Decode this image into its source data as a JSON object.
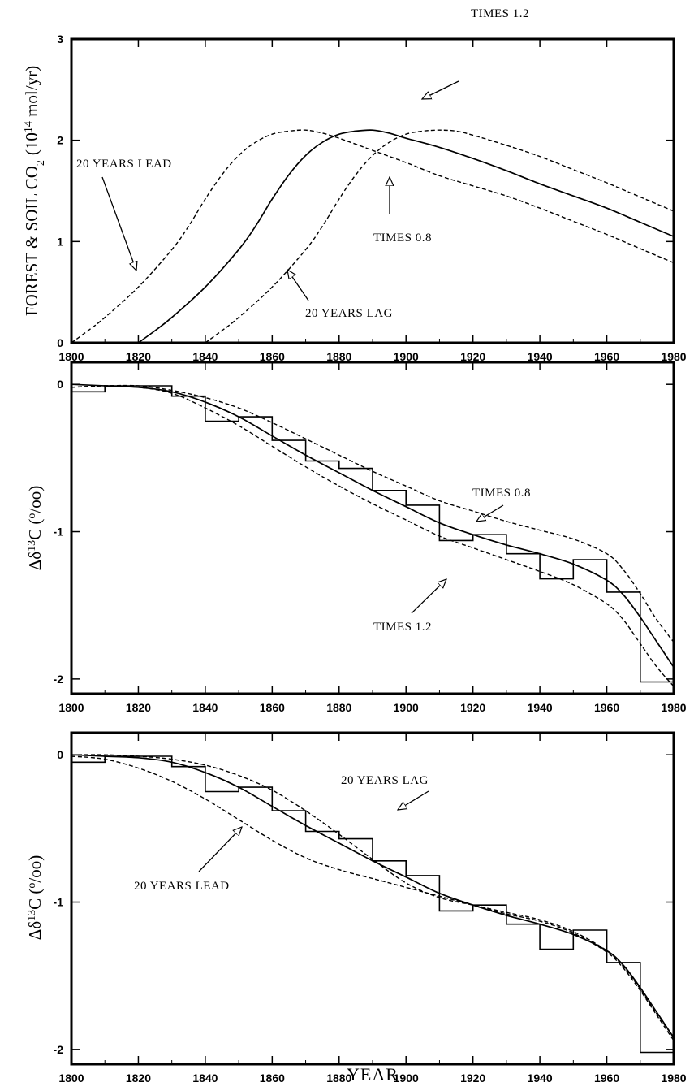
{
  "chart_data": [
    {
      "type": "line",
      "ylabel_main": "FOREST & SOIL CO",
      "ylabel_sub": "2",
      "ylabel_unit_pre": "(10",
      "ylabel_unit_sup": "14",
      "ylabel_unit_post": " mol/yr)",
      "xlim": [
        1800,
        1980
      ],
      "ylim": [
        0,
        3
      ],
      "xticks": [
        "1800",
        "1820",
        "1840",
        "1860",
        "1880",
        "1900",
        "1920",
        "1940",
        "1960",
        "1980"
      ],
      "yticks": [
        "0",
        "1",
        "2",
        "3"
      ],
      "series": [
        {
          "style": "solid",
          "x": [
            1820,
            1825,
            1830,
            1840,
            1850,
            1855,
            1860,
            1865,
            1870,
            1875,
            1880,
            1885,
            1890,
            1895,
            1900,
            1910,
            1920,
            1930,
            1940,
            1950,
            1960,
            1970,
            1980
          ],
          "y": [
            0,
            0.12,
            0.25,
            0.55,
            0.92,
            1.15,
            1.42,
            1.66,
            1.85,
            1.98,
            2.06,
            2.09,
            2.1,
            2.07,
            2.02,
            1.93,
            1.82,
            1.7,
            1.57,
            1.45,
            1.33,
            1.19,
            1.05
          ]
        },
        {
          "style": "dashed",
          "x": [
            1800,
            1805,
            1810,
            1820,
            1830,
            1835,
            1840,
            1845,
            1850,
            1855,
            1860,
            1865,
            1870,
            1875,
            1880,
            1890,
            1900,
            1910,
            1920,
            1930,
            1940,
            1950,
            1960,
            1970,
            1980
          ],
          "y": [
            0,
            0.12,
            0.25,
            0.55,
            0.92,
            1.15,
            1.42,
            1.66,
            1.85,
            1.98,
            2.06,
            2.09,
            2.1,
            2.07,
            2.02,
            1.9,
            1.78,
            1.65,
            1.55,
            1.45,
            1.33,
            1.2,
            1.07,
            0.93,
            0.79
          ]
        },
        {
          "style": "dashed",
          "x": [
            1840,
            1845,
            1850,
            1860,
            1870,
            1875,
            1880,
            1885,
            1890,
            1895,
            1900,
            1905,
            1910,
            1915,
            1920,
            1930,
            1940,
            1950,
            1960,
            1970,
            1980
          ],
          "y": [
            0,
            0.12,
            0.25,
            0.55,
            0.92,
            1.15,
            1.42,
            1.66,
            1.85,
            1.98,
            2.06,
            2.09,
            2.1,
            2.09,
            2.05,
            1.95,
            1.84,
            1.71,
            1.58,
            1.44,
            1.3
          ]
        }
      ],
      "annotations": [
        "TIMES 1.2",
        "20 YEARS LEAD",
        "TIMES 0.8",
        "20 YEARS LAG"
      ]
    },
    {
      "type": "line",
      "ylabel": "Δδ",
      "ylabel_sup": "13",
      "ylabel_c": "C (",
      "ylabel_o": "o",
      "ylabel_tail": "/oo)",
      "xlim": [
        1800,
        1980
      ],
      "ylim": [
        -2.1,
        0.15
      ],
      "xticks": [
        "1800",
        "1820",
        "1840",
        "1860",
        "1880",
        "1900",
        "1920",
        "1940",
        "1960",
        "1980"
      ],
      "yticks": [
        "0",
        "-1",
        "-2"
      ],
      "step_histogram": {
        "edges": [
          1800,
          1810,
          1820,
          1830,
          1840,
          1850,
          1860,
          1870,
          1880,
          1890,
          1900,
          1910,
          1920,
          1930,
          1940,
          1950,
          1960,
          1970,
          1980
        ],
        "values": [
          -0.05,
          -0.01,
          -0.01,
          -0.08,
          -0.25,
          -0.22,
          -0.38,
          -0.52,
          -0.57,
          -0.72,
          -0.82,
          -1.06,
          -1.02,
          -1.15,
          -1.32,
          -1.19,
          -1.41,
          -2.02
        ]
      },
      "series": [
        {
          "style": "solid",
          "x": [
            1800,
            1810,
            1820,
            1830,
            1840,
            1850,
            1860,
            1870,
            1880,
            1890,
            1900,
            1910,
            1920,
            1930,
            1940,
            1950,
            1960,
            1965,
            1970,
            1975,
            1980
          ],
          "y": [
            0,
            -0.01,
            -0.02,
            -0.05,
            -0.12,
            -0.22,
            -0.35,
            -0.48,
            -0.6,
            -0.72,
            -0.83,
            -0.94,
            -1.02,
            -1.09,
            -1.15,
            -1.22,
            -1.33,
            -1.43,
            -1.58,
            -1.75,
            -1.92
          ]
        },
        {
          "style": "dashed",
          "x": [
            1800,
            1810,
            1820,
            1830,
            1840,
            1850,
            1860,
            1870,
            1880,
            1890,
            1900,
            1910,
            1920,
            1930,
            1940,
            1950,
            1960,
            1965,
            1970,
            1975,
            1980
          ],
          "y": [
            -0.02,
            -0.01,
            -0.01,
            -0.04,
            -0.09,
            -0.16,
            -0.26,
            -0.37,
            -0.48,
            -0.59,
            -0.69,
            -0.79,
            -0.86,
            -0.93,
            -0.99,
            -1.05,
            -1.15,
            -1.26,
            -1.42,
            -1.6,
            -1.75
          ]
        },
        {
          "style": "dashed",
          "x": [
            1800,
            1810,
            1820,
            1830,
            1840,
            1850,
            1860,
            1870,
            1880,
            1890,
            1900,
            1910,
            1920,
            1930,
            1940,
            1950,
            1960,
            1965,
            1970,
            1975,
            1980
          ],
          "y": [
            -0.02,
            -0.01,
            -0.02,
            -0.06,
            -0.16,
            -0.28,
            -0.42,
            -0.56,
            -0.69,
            -0.81,
            -0.92,
            -1.03,
            -1.11,
            -1.19,
            -1.27,
            -1.36,
            -1.49,
            -1.6,
            -1.76,
            -1.92,
            -2.05
          ]
        }
      ],
      "annotations": [
        "TIMES 0.8",
        "TIMES 1.2"
      ]
    },
    {
      "type": "line",
      "ylabel": "Δδ",
      "ylabel_sup": "13",
      "ylabel_c": "C (",
      "ylabel_o": "o",
      "ylabel_tail": "/oo)",
      "xlabel": "YEAR",
      "xlim": [
        1800,
        1980
      ],
      "ylim": [
        -2.1,
        0.15
      ],
      "xticks": [
        "1800",
        "1820",
        "1840",
        "1860",
        "1880",
        "1900",
        "1920",
        "1940",
        "1960",
        "1980"
      ],
      "yticks": [
        "0",
        "-1",
        "-2"
      ],
      "step_histogram": {
        "edges": [
          1800,
          1810,
          1820,
          1830,
          1840,
          1850,
          1860,
          1870,
          1880,
          1890,
          1900,
          1910,
          1920,
          1930,
          1940,
          1950,
          1960,
          1970,
          1980
        ],
        "values": [
          -0.05,
          -0.01,
          -0.01,
          -0.08,
          -0.25,
          -0.22,
          -0.38,
          -0.52,
          -0.57,
          -0.72,
          -0.82,
          -1.06,
          -1.02,
          -1.15,
          -1.32,
          -1.19,
          -1.41,
          -2.02
        ]
      },
      "series": [
        {
          "style": "solid",
          "x": [
            1800,
            1810,
            1820,
            1830,
            1840,
            1850,
            1860,
            1870,
            1880,
            1890,
            1900,
            1910,
            1920,
            1930,
            1940,
            1950,
            1960,
            1965,
            1970,
            1975,
            1980
          ],
          "y": [
            0,
            -0.01,
            -0.02,
            -0.05,
            -0.12,
            -0.22,
            -0.35,
            -0.48,
            -0.6,
            -0.72,
            -0.83,
            -0.94,
            -1.02,
            -1.09,
            -1.15,
            -1.22,
            -1.33,
            -1.43,
            -1.58,
            -1.75,
            -1.92
          ]
        },
        {
          "style": "dashed",
          "x": [
            1800,
            1810,
            1820,
            1830,
            1840,
            1850,
            1860,
            1870,
            1880,
            1890,
            1900,
            1910,
            1920,
            1930,
            1940,
            1950,
            1960,
            1965,
            1970,
            1975,
            1980
          ],
          "y": [
            0,
            0,
            -0.01,
            -0.03,
            -0.07,
            -0.14,
            -0.24,
            -0.38,
            -0.54,
            -0.71,
            -0.87,
            -0.97,
            -1.02,
            -1.07,
            -1.12,
            -1.2,
            -1.33,
            -1.44,
            -1.59,
            -1.76,
            -1.92
          ]
        },
        {
          "style": "dashed",
          "x": [
            1800,
            1810,
            1820,
            1830,
            1840,
            1850,
            1860,
            1870,
            1880,
            1890,
            1900,
            1910,
            1920,
            1930,
            1940,
            1950,
            1960,
            1965,
            1970,
            1975,
            1980
          ],
          "y": [
            -0.01,
            -0.03,
            -0.09,
            -0.18,
            -0.3,
            -0.44,
            -0.58,
            -0.7,
            -0.78,
            -0.84,
            -0.9,
            -0.96,
            -1.02,
            -1.08,
            -1.13,
            -1.21,
            -1.34,
            -1.45,
            -1.6,
            -1.77,
            -1.94
          ]
        }
      ],
      "annotations": [
        "20 YEARS LAG",
        "20 YEARS LEAD"
      ]
    }
  ]
}
